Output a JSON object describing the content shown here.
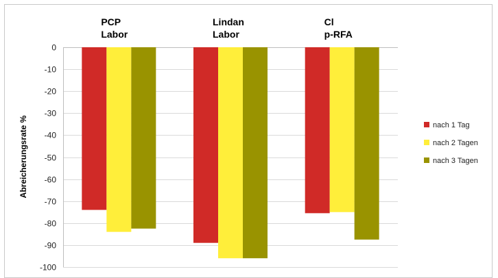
{
  "chart_data": {
    "type": "bar",
    "categories": [
      [
        "PCP",
        "Labor"
      ],
      [
        "Lindan",
        "Labor"
      ],
      [
        "Cl",
        "p-RFA"
      ]
    ],
    "series": [
      {
        "name": "nach 1 Tag",
        "color": "#d02a27",
        "values": [
          -74,
          -89,
          -75.5
        ]
      },
      {
        "name": "nach 2 Tagen",
        "color": "#ffee3a",
        "values": [
          -84,
          -96,
          -75
        ]
      },
      {
        "name": "nach 3 Tagen",
        "color": "#999300",
        "values": [
          -82.5,
          -96,
          -87.5
        ]
      }
    ],
    "ylabel": "Abreicherungsrate %",
    "ylim": [
      -100,
      0
    ],
    "yticks": [
      0,
      -10,
      -20,
      -30,
      -40,
      -50,
      -60,
      -70,
      -80,
      -90,
      -100
    ],
    "grid": true,
    "legend_position": "right"
  }
}
